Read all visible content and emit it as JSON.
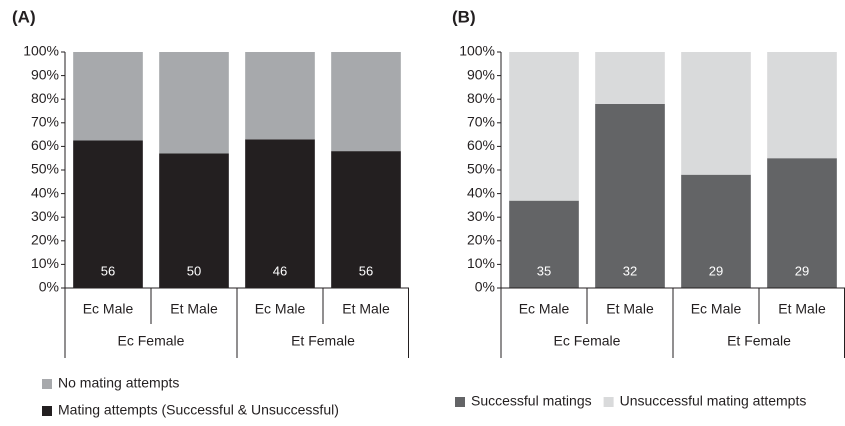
{
  "chart_data": [
    {
      "type": "bar",
      "stacked": true,
      "panel_label": "(A)",
      "groups": [
        {
          "label": "Ec Female",
          "categories": [
            "Ec Male",
            "Et Male"
          ]
        },
        {
          "label": "Et Female",
          "categories": [
            "Ec Male",
            "Et Male"
          ]
        }
      ],
      "series": [
        {
          "name": "Mating attempts (Successful & Unsuccessful)",
          "color": "#231f20",
          "values": [
            62.5,
            57,
            63,
            58
          ]
        },
        {
          "name": "No mating attempts",
          "color": "#a7a9ac",
          "values": [
            37.5,
            43,
            37,
            42
          ]
        }
      ],
      "sample_sizes": [
        56,
        50,
        46,
        56
      ],
      "ylim": [
        0,
        100
      ],
      "yticks": [
        {
          "value": 0,
          "label": "0%"
        },
        {
          "value": 10,
          "label": "10%"
        },
        {
          "value": 20,
          "label": "20%"
        },
        {
          "value": 30,
          "label": "30%"
        },
        {
          "value": 40,
          "label": "40%"
        },
        {
          "value": 50,
          "label": "50%"
        },
        {
          "value": 60,
          "label": "60%"
        },
        {
          "value": 70,
          "label": "70%"
        },
        {
          "value": 80,
          "label": "80%"
        },
        {
          "value": 90,
          "label": "90%"
        },
        {
          "value": 100,
          "label": "100%"
        }
      ],
      "legend": "bottom-vertical-reversed"
    },
    {
      "type": "bar",
      "stacked": true,
      "panel_label": "(B)",
      "groups": [
        {
          "label": "Ec Female",
          "categories": [
            "Ec Male",
            "Et Male"
          ]
        },
        {
          "label": "Et Female",
          "categories": [
            "Ec Male",
            "Et Male"
          ]
        }
      ],
      "series": [
        {
          "name": "Successful matings",
          "color": "#636466",
          "values": [
            37,
            78,
            48,
            55
          ]
        },
        {
          "name": "Unsuccessful mating attempts",
          "color": "#d9dadb",
          "values": [
            63,
            22,
            52,
            45
          ]
        }
      ],
      "sample_sizes": [
        35,
        32,
        29,
        29
      ],
      "ylim": [
        0,
        100
      ],
      "yticks": [
        {
          "value": 0,
          "label": "0%"
        },
        {
          "value": 10,
          "label": "10%"
        },
        {
          "value": 20,
          "label": "20%"
        },
        {
          "value": 30,
          "label": "30%"
        },
        {
          "value": 40,
          "label": "40%"
        },
        {
          "value": 50,
          "label": "50%"
        },
        {
          "value": 60,
          "label": "60%"
        },
        {
          "value": 70,
          "label": "70%"
        },
        {
          "value": 80,
          "label": "80%"
        },
        {
          "value": 90,
          "label": "90%"
        },
        {
          "value": 100,
          "label": "100%"
        }
      ],
      "legend": "bottom-horizontal"
    }
  ]
}
